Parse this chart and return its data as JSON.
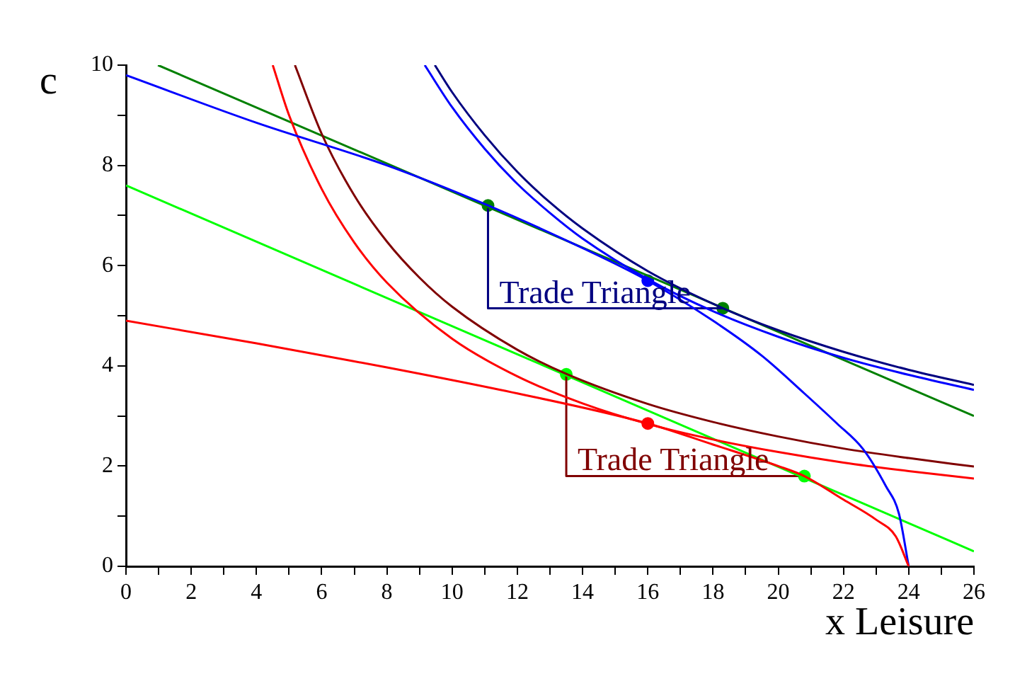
{
  "chart_data": {
    "type": "line",
    "xlabel": "x Leisure",
    "ylabel": "c",
    "xlim": [
      0,
      26
    ],
    "xticks": [
      0,
      {
        "value": 1,
        "label": null
      },
      2,
      {
        "value": 3,
        "label": null
      },
      4,
      {
        "value": 5,
        "label": null
      },
      6,
      {
        "value": 7,
        "label": null
      },
      8,
      {
        "value": 9,
        "label": null
      },
      10,
      {
        "value": 11,
        "label": null
      },
      12,
      {
        "value": 13,
        "label": null
      },
      14,
      {
        "value": 15,
        "label": null
      },
      16,
      {
        "value": 17,
        "label": null
      },
      18,
      {
        "value": 19,
        "label": null
      },
      20,
      {
        "value": 21,
        "label": null
      },
      22,
      {
        "value": 23,
        "label": null
      },
      24,
      {
        "value": 25,
        "label": null
      },
      26
    ],
    "ylim": [
      0,
      10
    ],
    "yticks": [
      0,
      {
        "value": 1,
        "label": null
      },
      2,
      {
        "value": 3,
        "label": null
      },
      4,
      {
        "value": 5,
        "label": null
      },
      6,
      {
        "value": 7,
        "label": null
      },
      8,
      {
        "value": 9,
        "label": null
      },
      10
    ],
    "series": [
      {
        "type": "line",
        "color": "#ff0000",
        "x": [
          0,
          4,
          8,
          12,
          16,
          18,
          20,
          20.8,
          22,
          23,
          23.6,
          24
        ],
        "values": [
          4.9,
          4.45,
          3.97,
          3.45,
          2.85,
          2.43,
          2.0,
          1.8,
          1.33,
          0.93,
          0.6,
          0
        ]
      },
      {
        "type": "line",
        "color": "#0000ff",
        "x": [
          0,
          4,
          8,
          11.1,
          14,
          16,
          18,
          19.5,
          20.8,
          21.8,
          22.6,
          23.3,
          23.7,
          24
        ],
        "values": [
          9.8,
          8.85,
          8.0,
          7.2,
          6.35,
          5.7,
          4.9,
          4.2,
          3.45,
          2.85,
          2.34,
          1.6,
          1.05,
          0
        ]
      },
      {
        "type": "line",
        "color": "#ff0000",
        "x": [
          4.5,
          5,
          6,
          7,
          8,
          10,
          12,
          14,
          16,
          18,
          20,
          22,
          24,
          26
        ],
        "values": [
          10,
          9.0,
          7.53,
          6.46,
          5.66,
          4.54,
          3.79,
          3.25,
          2.84,
          2.53,
          2.28,
          2.07,
          1.9,
          1.75
        ]
      },
      {
        "type": "line",
        "color": "#800000",
        "x": [
          5.18,
          6,
          7,
          8,
          9,
          10,
          12,
          13.5,
          16,
          18,
          20,
          22,
          24,
          26
        ],
        "values": [
          10,
          8.63,
          7.4,
          6.48,
          5.76,
          5.18,
          4.32,
          3.84,
          3.24,
          2.88,
          2.59,
          2.35,
          2.16,
          1.99
        ]
      },
      {
        "type": "line",
        "color": "#0000ff",
        "x": [
          9.16,
          10,
          11,
          12,
          13,
          14,
          16,
          18,
          20,
          22,
          24,
          26
        ],
        "values": [
          10,
          9.16,
          8.33,
          7.63,
          7.05,
          6.54,
          5.73,
          5.09,
          4.58,
          4.16,
          3.82,
          3.52
        ]
      },
      {
        "type": "line",
        "color": "#000080",
        "x": [
          9.47,
          10,
          11,
          12,
          13,
          14,
          16,
          18.3,
          20,
          22,
          24,
          26
        ],
        "values": [
          10,
          9.46,
          8.6,
          7.87,
          7.26,
          6.74,
          5.89,
          5.15,
          4.71,
          4.28,
          3.92,
          3.62
        ]
      },
      {
        "type": "line",
        "color": "#008000",
        "x": [
          0.98,
          26
        ],
        "values": [
          10,
          3.0
        ]
      },
      {
        "type": "line",
        "color": "#00ff00",
        "x": [
          0,
          26
        ],
        "values": [
          7.6,
          0.3
        ]
      },
      {
        "type": "line",
        "color": "#000080",
        "x": [
          11.1,
          11.1,
          18.3
        ],
        "values": [
          7.2,
          5.15,
          5.15
        ]
      },
      {
        "type": "line",
        "color": "#800000",
        "x": [
          13.5,
          13.5,
          20.8
        ],
        "values": [
          3.83,
          1.8,
          1.8
        ]
      },
      {
        "type": "scatter",
        "marker": "circle",
        "color": "#008000",
        "x": [
          11.1,
          18.3
        ],
        "values": [
          7.2,
          5.15
        ]
      },
      {
        "type": "scatter",
        "marker": "circle",
        "color": "#0000ff",
        "x": [
          16
        ],
        "values": [
          5.7
        ]
      },
      {
        "type": "scatter",
        "marker": "circle",
        "color": "#ff0000",
        "x": [
          16
        ],
        "values": [
          2.85
        ]
      },
      {
        "type": "scatter",
        "marker": "circle",
        "color": "#00ff00",
        "x": [
          13.5,
          20.8
        ],
        "values": [
          3.83,
          1.8
        ]
      }
    ],
    "annotations": [
      {
        "text": "Trade Triangle",
        "x": 11.1,
        "y": 5.15
      },
      {
        "text": "Trade Triangle",
        "x": 13.5,
        "y": 1.8
      }
    ]
  }
}
